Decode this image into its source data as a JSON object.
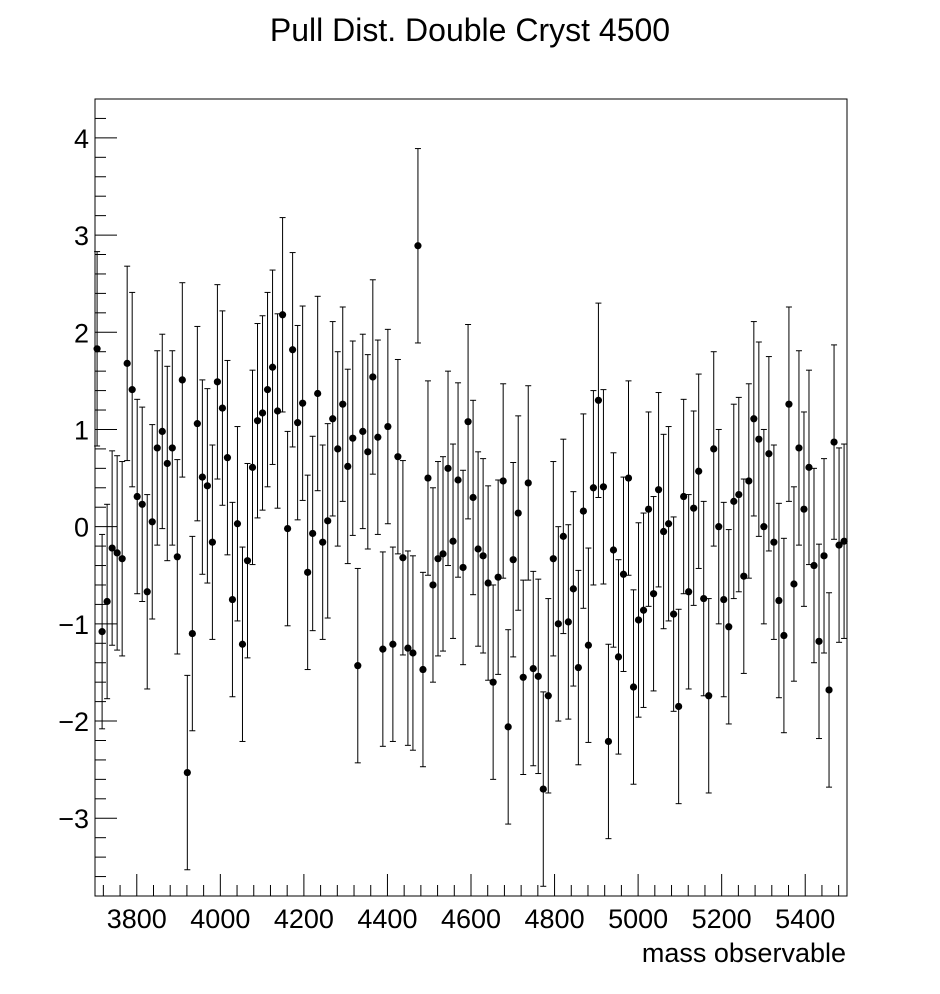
{
  "chart_data": {
    "type": "scatter",
    "title": "Pull Dist. Double Cryst 4500",
    "xlabel": "mass observable",
    "ylabel": "",
    "xlim": [
      3700,
      5500
    ],
    "ylim": [
      -3.8,
      4.4
    ],
    "grid": false,
    "legend": "none",
    "x_ticks": [
      3800,
      4000,
      4200,
      4400,
      4600,
      4800,
      5000,
      5200,
      5400
    ],
    "x_tick_labels": [
      "3800",
      "4000",
      "4200",
      "4400",
      "4600",
      "4800",
      "5000",
      "5200",
      "5400"
    ],
    "y_ticks": [
      -3,
      -2,
      -1,
      0,
      1,
      2,
      3,
      4
    ],
    "y_tick_labels": [
      "−3",
      "−2",
      "−1",
      "0",
      "1",
      "2",
      "3",
      "4"
    ],
    "series": [
      {
        "marker": "circle",
        "color": "#000000",
        "error": 1,
        "x": [
          3705,
          3717,
          3729,
          3741,
          3753,
          3765,
          3777,
          3789,
          3801,
          3813,
          3825,
          3837,
          3849,
          3861,
          3873,
          3885,
          3897,
          3909,
          3921,
          3933,
          3945,
          3957,
          3969,
          3981,
          3993,
          4005,
          4017,
          4029,
          4041,
          4053,
          4065,
          4077,
          4089,
          4101,
          4113,
          4125,
          4137,
          4149,
          4161,
          4173,
          4185,
          4197,
          4209,
          4221,
          4233,
          4245,
          4257,
          4269,
          4281,
          4293,
          4305,
          4317,
          4329,
          4341,
          4353,
          4365,
          4377,
          4389,
          4401,
          4413,
          4425,
          4437,
          4449,
          4461,
          4473,
          4485,
          4497,
          4509,
          4521,
          4533,
          4545,
          4557,
          4569,
          4581,
          4593,
          4605,
          4617,
          4629,
          4641,
          4653,
          4665,
          4677,
          4689,
          4701,
          4713,
          4725,
          4737,
          4749,
          4761,
          4773,
          4785,
          4797,
          4809,
          4821,
          4833,
          4845,
          4857,
          4869,
          4881,
          4893,
          4905,
          4917,
          4929,
          4941,
          4953,
          4965,
          4977,
          4989,
          5001,
          5013,
          5025,
          5037,
          5049,
          5061,
          5073,
          5085,
          5097,
          5109,
          5121,
          5133,
          5145,
          5157,
          5169,
          5181,
          5193,
          5205,
          5217,
          5229,
          5241,
          5253,
          5265,
          5277,
          5289,
          5301,
          5313,
          5325,
          5337,
          5349,
          5361,
          5373,
          5385,
          5397,
          5409,
          5421,
          5433,
          5445,
          5457,
          5469,
          5481,
          5493
        ],
        "y": [
          1.83,
          -1.08,
          -0.77,
          -0.22,
          -0.27,
          -0.33,
          1.68,
          1.41,
          0.31,
          0.23,
          -0.67,
          0.05,
          0.81,
          0.98,
          0.65,
          0.81,
          -0.31,
          1.51,
          -2.53,
          -1.1,
          1.06,
          0.51,
          0.42,
          -0.16,
          1.49,
          1.22,
          0.71,
          -0.75,
          0.03,
          -1.21,
          -0.35,
          0.61,
          1.09,
          1.17,
          1.41,
          1.64,
          1.19,
          2.18,
          -0.02,
          1.82,
          1.07,
          1.27,
          -0.47,
          -0.07,
          1.37,
          -0.16,
          0.06,
          1.11,
          0.8,
          1.26,
          0.62,
          0.91,
          -1.43,
          0.98,
          0.77,
          1.54,
          0.92,
          -1.26,
          1.03,
          -1.21,
          0.72,
          -0.32,
          -1.25,
          -1.3,
          2.89,
          -1.47,
          0.5,
          -0.6,
          -0.33,
          -0.28,
          0.6,
          -0.15,
          0.48,
          -0.42,
          1.08,
          0.3,
          -0.23,
          -0.3,
          -0.58,
          -1.6,
          -0.52,
          0.47,
          -2.06,
          -0.34,
          0.14,
          -1.55,
          0.45,
          -1.46,
          -1.54,
          -2.7,
          -1.74,
          -0.33,
          -1.0,
          -0.1,
          -0.98,
          -0.64,
          -1.45,
          0.16,
          -1.22,
          0.4,
          1.3,
          0.41,
          -2.21,
          -0.24,
          -1.34,
          -0.49,
          0.5,
          -1.65,
          -0.96,
          -0.86,
          0.18,
          -0.69,
          0.38,
          -0.05,
          0.03,
          -0.9,
          -1.85,
          0.31,
          -0.67,
          0.19,
          0.57,
          -0.74,
          -1.74,
          0.8,
          0.0,
          -0.75,
          -1.03,
          0.26,
          0.33,
          -0.51,
          0.47,
          1.11,
          0.9,
          0.0,
          0.75,
          -0.16,
          -0.76,
          -1.12,
          1.26,
          -0.59,
          0.81,
          0.18,
          0.61,
          -0.4,
          -1.18,
          -0.3,
          -1.68,
          0.87,
          -0.19,
          -0.15
        ]
      }
    ]
  }
}
